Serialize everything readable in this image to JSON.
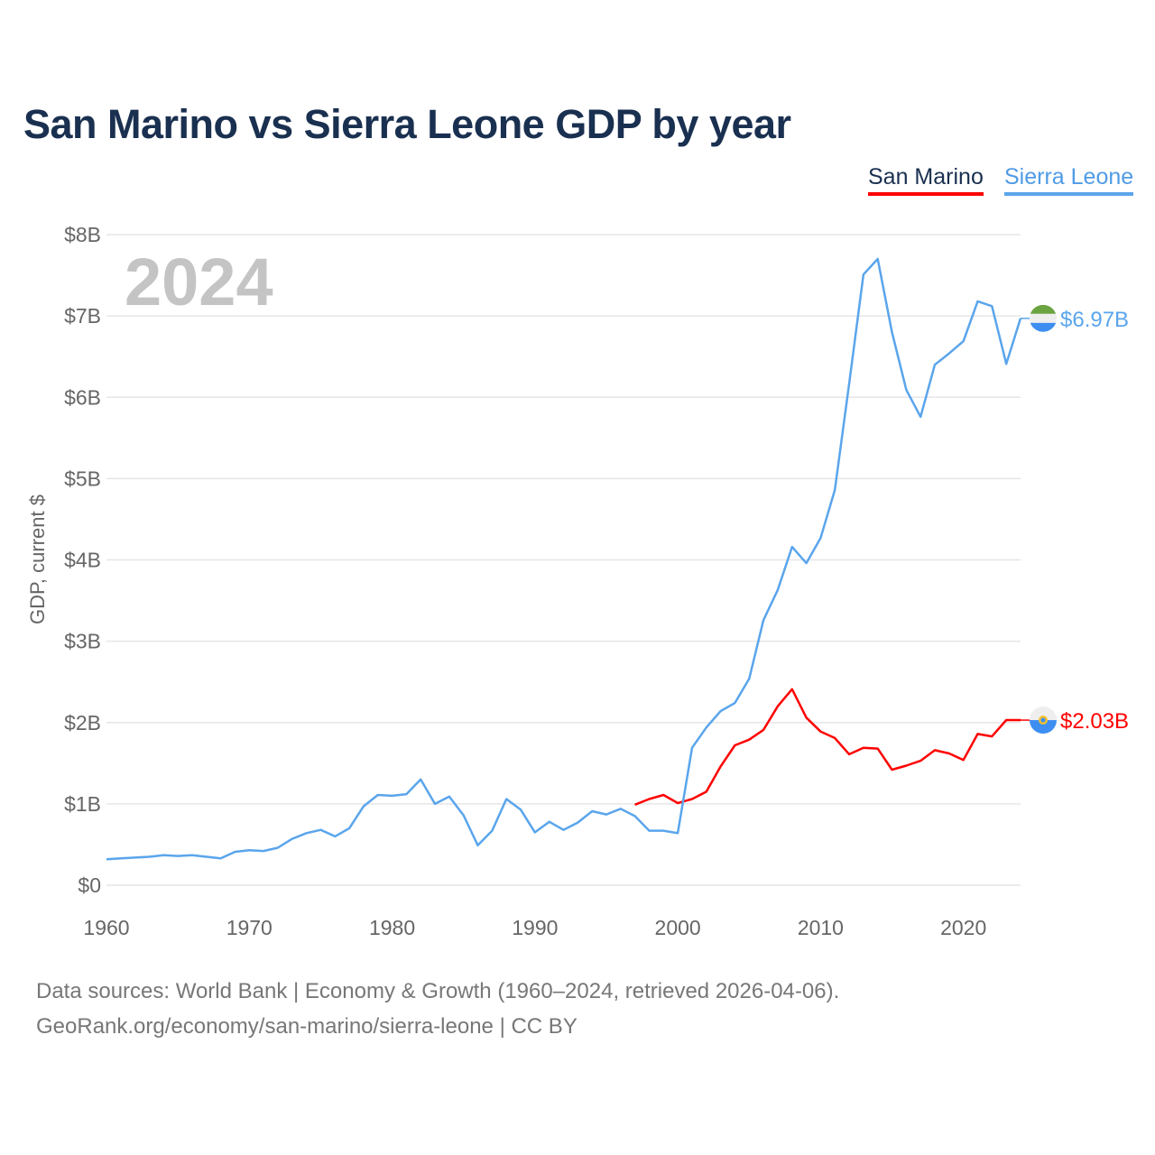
{
  "chart_data": {
    "type": "line",
    "title": "San Marino vs Sierra Leone GDP by year",
    "xlabel": "",
    "ylabel": "GDP, current $",
    "xlim": [
      1960,
      2024
    ],
    "ylim": [
      0,
      8
    ],
    "y_unit": "billion USD",
    "x_ticks": [
      1960,
      1970,
      1980,
      1990,
      2000,
      2010,
      2020
    ],
    "x_tick_labels": [
      "1960",
      "1970",
      "1980",
      "1990",
      "2000",
      "2010",
      "2020"
    ],
    "y_ticks": [
      0,
      1,
      2,
      3,
      4,
      5,
      6,
      7,
      8
    ],
    "y_tick_labels": [
      "$0",
      "$1B",
      "$2B",
      "$3B",
      "$4B",
      "$5B",
      "$6B",
      "$7B",
      "$8B"
    ],
    "grid": true,
    "legend_position": "top-right",
    "year_watermark": "2024",
    "series": [
      {
        "name": "San Marino",
        "color": "#ff0000",
        "end_label": "$2.03B",
        "flag": "san-marino-flag-icon",
        "x": [
          1997,
          1998,
          1999,
          2000,
          2001,
          2002,
          2003,
          2004,
          2005,
          2006,
          2007,
          2008,
          2009,
          2010,
          2011,
          2012,
          2013,
          2014,
          2015,
          2016,
          2017,
          2018,
          2019,
          2020,
          2021,
          2022,
          2023,
          2024
        ],
        "values": [
          0.99,
          1.06,
          1.11,
          1.01,
          1.06,
          1.15,
          1.46,
          1.72,
          1.79,
          1.91,
          2.2,
          2.41,
          2.06,
          1.89,
          1.81,
          1.61,
          1.69,
          1.68,
          1.42,
          1.47,
          1.53,
          1.66,
          1.62,
          1.54,
          1.86,
          1.83,
          2.03,
          2.03
        ]
      },
      {
        "name": "Sierra Leone",
        "color": "#5aa5ec",
        "end_label": "$6.97B",
        "flag": "sierra-leone-flag-icon",
        "x": [
          1960,
          1961,
          1962,
          1963,
          1964,
          1965,
          1966,
          1967,
          1968,
          1969,
          1970,
          1971,
          1972,
          1973,
          1974,
          1975,
          1976,
          1977,
          1978,
          1979,
          1980,
          1981,
          1982,
          1983,
          1984,
          1985,
          1986,
          1987,
          1988,
          1989,
          1990,
          1991,
          1992,
          1993,
          1994,
          1995,
          1996,
          1997,
          1998,
          1999,
          2000,
          2001,
          2002,
          2003,
          2004,
          2005,
          2006,
          2007,
          2008,
          2009,
          2010,
          2011,
          2012,
          2013,
          2014,
          2015,
          2016,
          2017,
          2018,
          2019,
          2020,
          2021,
          2022,
          2023,
          2024
        ],
        "values": [
          0.32,
          0.33,
          0.34,
          0.35,
          0.37,
          0.36,
          0.37,
          0.35,
          0.33,
          0.41,
          0.43,
          0.42,
          0.46,
          0.57,
          0.64,
          0.68,
          0.6,
          0.7,
          0.97,
          1.11,
          1.1,
          1.12,
          1.3,
          1.0,
          1.09,
          0.86,
          0.49,
          0.67,
          1.06,
          0.93,
          0.65,
          0.78,
          0.68,
          0.77,
          0.91,
          0.87,
          0.94,
          0.85,
          0.67,
          0.67,
          0.64,
          1.69,
          1.94,
          2.14,
          2.24,
          2.54,
          3.26,
          3.63,
          4.16,
          3.96,
          4.27,
          4.86,
          6.17,
          7.51,
          7.7,
          6.8,
          6.09,
          5.76,
          6.4,
          6.54,
          6.69,
          7.18,
          7.12,
          6.41,
          6.97
        ]
      }
    ]
  },
  "legend": {
    "san_marino": "San Marino",
    "sierra_leone": "Sierra Leone"
  },
  "footer": {
    "line1": "Data sources: World Bank | Economy & Growth (1960–2024, retrieved 2026-04-06).",
    "line2": "GeoRank.org/economy/san-marino/sierra-leone | CC BY"
  }
}
